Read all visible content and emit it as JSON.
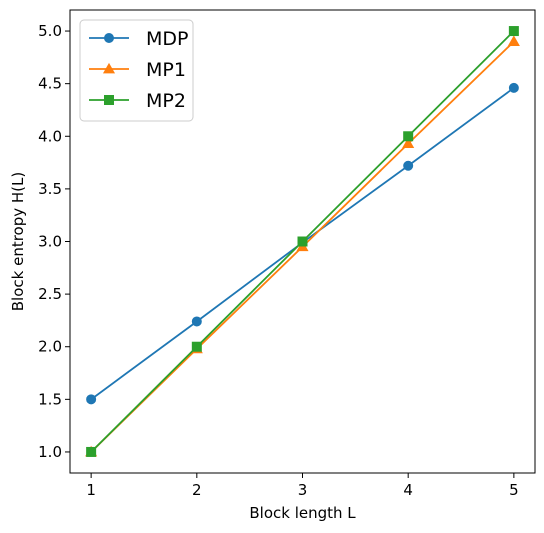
{
  "chart_data": {
    "type": "line",
    "title": "",
    "xlabel": "Block length L",
    "ylabel": "Block entropy H(L)",
    "x": [
      1,
      2,
      3,
      4,
      5
    ],
    "xlim": [
      0.8,
      5.2
    ],
    "ylim": [
      0.8,
      5.2
    ],
    "xticks": [
      "1",
      "2",
      "3",
      "4",
      "5"
    ],
    "yticks": [
      "1.0",
      "1.5",
      "2.0",
      "2.5",
      "3.0",
      "3.5",
      "4.0",
      "4.5",
      "5.0"
    ],
    "grid": false,
    "legend_position": "top-left",
    "series": [
      {
        "name": "MDP",
        "values": [
          1.5,
          2.24,
          2.99,
          3.72,
          4.46
        ],
        "color": "#1f77b4",
        "marker": "circle"
      },
      {
        "name": "MP1",
        "values": [
          1.0,
          1.98,
          2.95,
          3.93,
          4.9
        ],
        "color": "#ff7f0e",
        "marker": "triangle"
      },
      {
        "name": "MP2",
        "values": [
          1.0,
          2.0,
          3.0,
          4.0,
          5.0
        ],
        "color": "#2ca02c",
        "marker": "square"
      }
    ]
  }
}
